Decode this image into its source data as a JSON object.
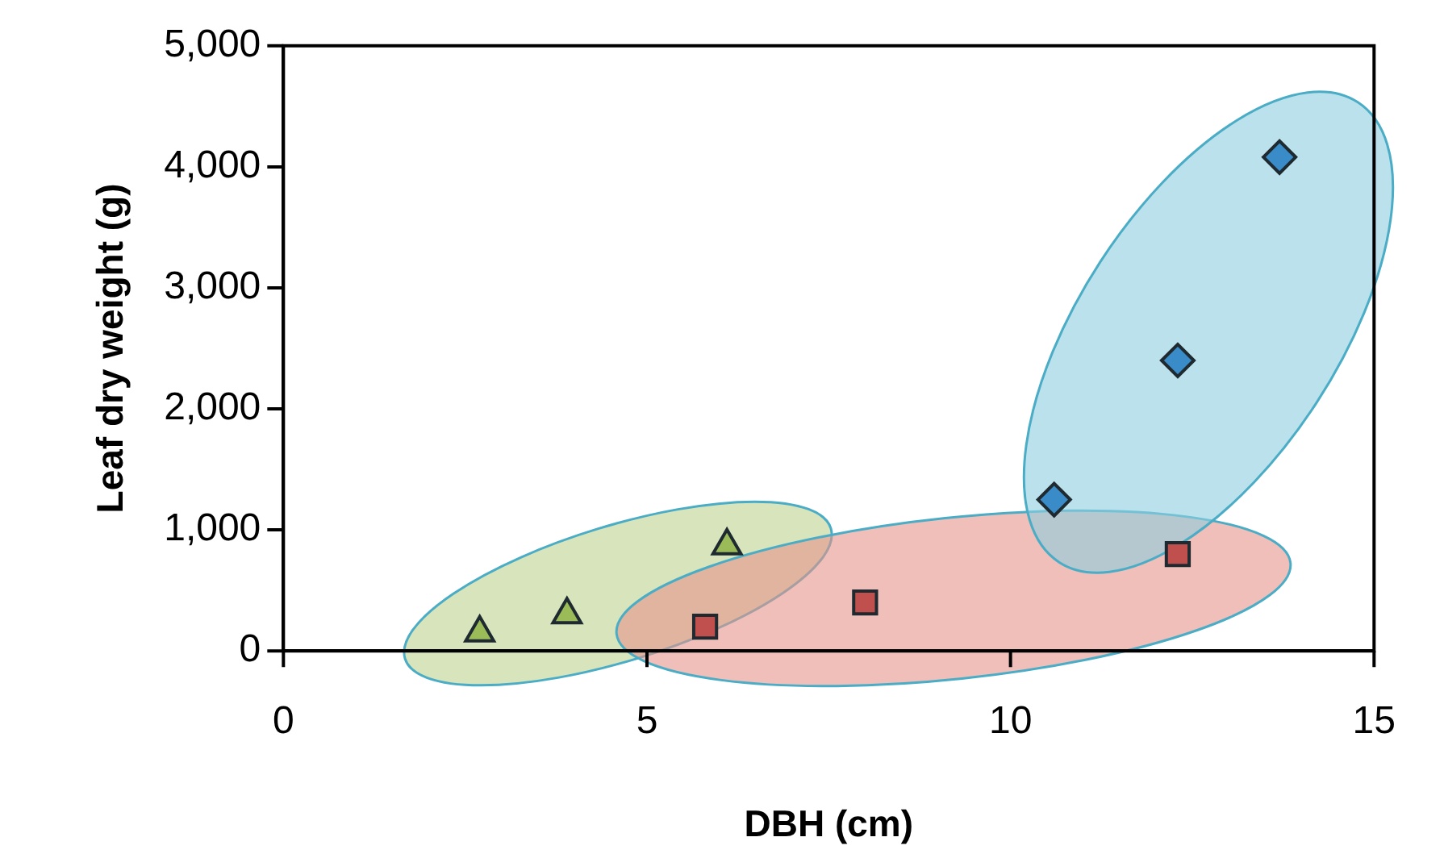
{
  "chart_data": {
    "type": "scatter",
    "xlabel": "DBH (cm)",
    "ylabel": "Leaf dry weight (g)",
    "xlim": [
      0,
      15
    ],
    "xticks": [
      0,
      5,
      10,
      15
    ],
    "ylim": [
      0,
      5000
    ],
    "yticks": [
      {
        "value": 0,
        "label": "0"
      },
      {
        "value": 1000,
        "label": "1,000"
      },
      {
        "value": 2000,
        "label": "2,000"
      },
      {
        "value": 3000,
        "label": "3,000"
      },
      {
        "value": 4000,
        "label": "4,000"
      },
      {
        "value": 5000,
        "label": "5,000"
      }
    ],
    "grid": false,
    "legend": false,
    "series": [
      {
        "color": "#9bbb59",
        "marker": "triangle",
        "x": [
          2.7,
          3.9,
          6.1
        ],
        "values": [
          150,
          300,
          870
        ]
      },
      {
        "color": "#c0504d",
        "marker": "square",
        "x": [
          5.8,
          8.0,
          12.3
        ],
        "values": [
          200,
          400,
          800
        ]
      },
      {
        "color": "#3a8cc8",
        "marker": "diamond",
        "x": [
          10.6,
          12.3,
          13.7
        ],
        "values": [
          1250,
          2400,
          4080
        ]
      }
    ]
  }
}
